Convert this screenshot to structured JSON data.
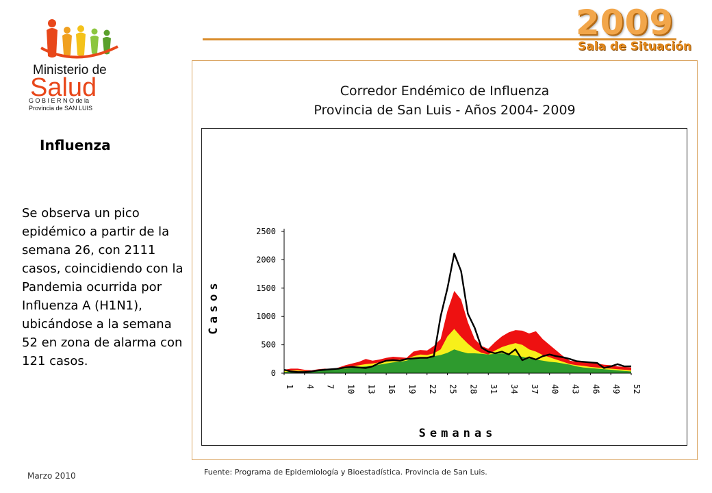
{
  "header": {
    "year": "2009",
    "subtitle": "Sala de Situación",
    "logo": {
      "line1": "Ministerio de",
      "line2": "Salud",
      "line3": "G O B I E R N O  de la",
      "line4": "Provincia de SAN LUIS"
    }
  },
  "sidebar": {
    "title": "Influenza",
    "summary": "Se observa un pico epidémico a partir de la semana 26, con 2111 casos, coincidiendo con la Pandemia ocurrida por Influenza A (H1N1), ubicándose a la semana 52 en zona de alarma con 121 casos."
  },
  "footer": {
    "date": "Marzo 2010",
    "source": "Fuente: Programa de Epidemiología y Bioestadística. Provincia de San Luis."
  },
  "colors": {
    "accent": "#d98c2a",
    "alarm": "#ee1111",
    "epidemic": "#f7f01a",
    "safe": "#2e9a2e",
    "current_line": "#000000"
  },
  "chart_data": {
    "type": "area",
    "title": [
      "Corredor Endémico de Influenza",
      "Provincia de San Luis - Años 2004-  2009"
    ],
    "xlabel": "Semanas",
    "ylabel": "Casos",
    "ylim": [
      0,
      2500
    ],
    "yticks": [
      0,
      500,
      1000,
      1500,
      2000,
      2500
    ],
    "x": [
      1,
      2,
      3,
      4,
      5,
      6,
      7,
      8,
      9,
      10,
      11,
      12,
      13,
      14,
      15,
      16,
      17,
      18,
      19,
      20,
      21,
      22,
      23,
      24,
      25,
      26,
      27,
      28,
      29,
      30,
      31,
      32,
      33,
      34,
      35,
      36,
      37,
      38,
      39,
      40,
      41,
      42,
      43,
      44,
      45,
      46,
      47,
      48,
      49,
      50,
      51,
      52
    ],
    "xtick_labels": [
      "1",
      "4",
      "7",
      "10",
      "13",
      "16",
      "19",
      "22",
      "25",
      "28",
      "31",
      "34",
      "37",
      "40",
      "43",
      "46",
      "49",
      "52"
    ],
    "series": [
      {
        "role": "alarm",
        "values": [
          60,
          80,
          80,
          60,
          50,
          70,
          80,
          70,
          100,
          140,
          170,
          200,
          250,
          220,
          240,
          270,
          290,
          280,
          270,
          380,
          410,
          400,
          480,
          600,
          1100,
          1450,
          1300,
          900,
          600,
          480,
          430,
          550,
          650,
          720,
          760,
          750,
          700,
          740,
          600,
          500,
          400,
          300,
          220,
          200,
          200,
          180,
          170,
          150,
          140,
          120,
          110,
          100
        ]
      },
      {
        "role": "epidemic",
        "values": [
          40,
          50,
          50,
          40,
          40,
          50,
          60,
          60,
          80,
          100,
          120,
          140,
          160,
          170,
          190,
          210,
          230,
          240,
          250,
          300,
          330,
          320,
          350,
          420,
          650,
          780,
          640,
          520,
          420,
          360,
          330,
          400,
          460,
          500,
          530,
          500,
          420,
          380,
          320,
          280,
          240,
          200,
          160,
          140,
          130,
          110,
          100,
          90,
          80,
          70,
          60,
          50
        ]
      },
      {
        "role": "safe",
        "values": [
          20,
          25,
          30,
          25,
          30,
          40,
          50,
          60,
          70,
          80,
          90,
          110,
          120,
          130,
          150,
          170,
          190,
          200,
          220,
          260,
          280,
          280,
          300,
          320,
          360,
          420,
          380,
          350,
          350,
          340,
          330,
          340,
          350,
          330,
          310,
          290,
          260,
          240,
          220,
          200,
          190,
          170,
          150,
          120,
          100,
          90,
          80,
          70,
          60,
          50,
          40,
          30
        ]
      },
      {
        "role": "current",
        "values": [
          60,
          30,
          20,
          20,
          30,
          50,
          60,
          70,
          80,
          100,
          110,
          100,
          90,
          120,
          180,
          220,
          230,
          220,
          250,
          260,
          270,
          270,
          300,
          1000,
          1500,
          2111,
          1800,
          1050,
          800,
          450,
          380,
          350,
          380,
          330,
          420,
          230,
          280,
          240,
          300,
          330,
          300,
          280,
          250,
          210,
          200,
          190,
          180,
          90,
          120,
          160,
          120,
          121
        ]
      }
    ]
  }
}
